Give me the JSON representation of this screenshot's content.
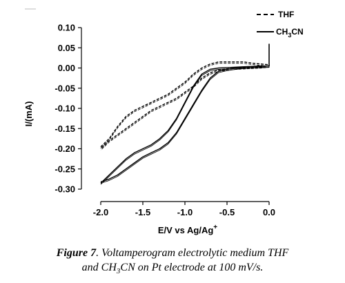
{
  "chart_data": {
    "type": "line",
    "title": "",
    "xlabel": "E/V vs Ag/Ag",
    "xlabel_sup": "+",
    "ylabel": "I/(mA)",
    "xlim": [
      -2.25,
      0.15
    ],
    "ylim": [
      -0.32,
      0.1
    ],
    "x_ticks": [
      "-2.0",
      "-1.5",
      "-1.0",
      "-0.5",
      "0.0"
    ],
    "x_tick_values": [
      -2.0,
      -1.5,
      -1.0,
      -0.5,
      0.0
    ],
    "y_ticks": [
      "0.10",
      "0.05",
      "0.00",
      "-0.05",
      "-0.10",
      "-0.15",
      "-0.20",
      "-0.25",
      "-0.30"
    ],
    "y_tick_values": [
      0.1,
      0.05,
      0.0,
      -0.05,
      -0.1,
      -0.15,
      -0.2,
      -0.25,
      -0.3
    ],
    "grid": false,
    "legend_position": "top-right",
    "series": [
      {
        "name": "THF",
        "style": "dashed",
        "color": "#000000",
        "x": [
          -2.0,
          -1.9,
          -1.8,
          -1.7,
          -1.6,
          -1.5,
          -1.4,
          -1.3,
          -1.2,
          -1.1,
          -1.0,
          -0.9,
          -0.8,
          -0.7,
          -0.6,
          -0.5,
          -0.4,
          -0.3,
          -0.2,
          -0.1,
          0.0,
          0.0,
          -0.1,
          -0.2,
          -0.3,
          -0.4,
          -0.5,
          -0.6,
          -0.7,
          -0.8,
          -0.9,
          -1.0,
          -1.1,
          -1.2,
          -1.3,
          -1.4,
          -1.5,
          -1.6,
          -1.7,
          -1.8,
          -1.9,
          -2.0
        ],
        "y": [
          -0.195,
          -0.175,
          -0.145,
          -0.12,
          -0.105,
          -0.095,
          -0.085,
          -0.075,
          -0.065,
          -0.05,
          -0.035,
          -0.015,
          0.0,
          0.01,
          0.015,
          0.015,
          0.015,
          0.015,
          0.012,
          0.01,
          0.008,
          0.005,
          0.003,
          0.002,
          0.001,
          0.0,
          -0.002,
          -0.005,
          -0.012,
          -0.025,
          -0.045,
          -0.06,
          -0.075,
          -0.085,
          -0.095,
          -0.105,
          -0.12,
          -0.135,
          -0.15,
          -0.165,
          -0.18,
          -0.2
        ]
      },
      {
        "name": "CH3CN",
        "style": "solid",
        "color": "#000000",
        "x": [
          -2.0,
          -1.9,
          -1.8,
          -1.7,
          -1.6,
          -1.5,
          -1.4,
          -1.3,
          -1.2,
          -1.1,
          -1.0,
          -0.9,
          -0.8,
          -0.7,
          -0.6,
          -0.5,
          -0.4,
          -0.3,
          -0.2,
          -0.1,
          0.0,
          0.0,
          -0.1,
          -0.2,
          -0.3,
          -0.4,
          -0.5,
          -0.6,
          -0.7,
          -0.8,
          -0.9,
          -1.0,
          -1.1,
          -1.2,
          -1.3,
          -1.4,
          -1.5,
          -1.6,
          -1.7,
          -1.8,
          -1.9,
          -2.0
        ],
        "y": [
          -0.285,
          -0.265,
          -0.245,
          -0.225,
          -0.21,
          -0.2,
          -0.19,
          -0.175,
          -0.155,
          -0.125,
          -0.085,
          -0.045,
          -0.015,
          -0.003,
          0.0,
          0.001,
          0.002,
          0.003,
          0.004,
          0.005,
          0.005,
          0.005,
          0.004,
          0.003,
          0.002,
          0.0,
          -0.003,
          -0.008,
          -0.025,
          -0.055,
          -0.09,
          -0.125,
          -0.16,
          -0.185,
          -0.2,
          -0.21,
          -0.22,
          -0.235,
          -0.25,
          -0.265,
          -0.275,
          -0.282
        ]
      }
    ],
    "spike": {
      "x": [
        0.0,
        0.0
      ],
      "y": [
        0.005,
        0.06
      ]
    },
    "legend": [
      {
        "label_main": "THF",
        "style": "dashed"
      },
      {
        "label_main": "CH",
        "sub": "3",
        "label_tail": "CN",
        "style": "solid"
      }
    ]
  },
  "caption": {
    "label": "Figure 7",
    "text_line1_a": ". Voltamperogram electrolytic medium THF",
    "text_line2_a": "and CH",
    "text_line2_sub": "3",
    "text_line2_b": "CN on Pt electrode at 100 mV/s."
  }
}
